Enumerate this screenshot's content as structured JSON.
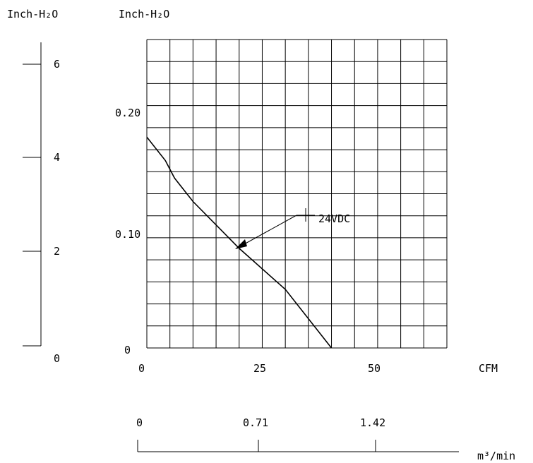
{
  "chart_data": {
    "type": "line",
    "x_unit_label": "CFM",
    "y_unit_label": "Inch-H₂O",
    "x_range": [
      0,
      65
    ],
    "y_range": [
      0,
      0.25
    ],
    "x_ticks": [
      "0",
      "25",
      "50"
    ],
    "y_ticks": [
      "0",
      "0.10",
      "0.20"
    ],
    "grid": true,
    "series": [
      {
        "name": "24VDC",
        "x": [
          0,
          4,
          6,
          10,
          15,
          20,
          30,
          40
        ],
        "y": [
          0.18,
          0.16,
          0.145,
          0.125,
          0.105,
          0.085,
          0.05,
          0.0
        ]
      }
    ],
    "annotation": "24VDC",
    "secondary_y_axis": {
      "unit_label": "Inch-H₂O",
      "ticks": [
        "0",
        "2",
        "4",
        "6"
      ]
    },
    "secondary_x_axis": {
      "unit_label": "m³/min",
      "ticks": [
        "0",
        "0.71",
        "1.42"
      ]
    }
  }
}
